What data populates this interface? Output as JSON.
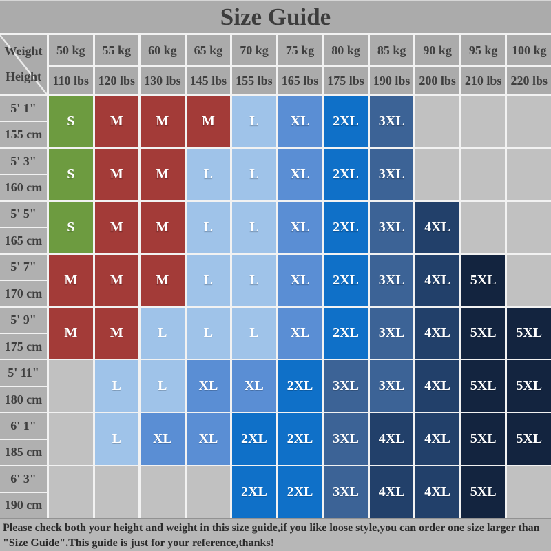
{
  "title": "Size Guide",
  "corner": {
    "weight_label": "Weight",
    "height_label": "Height"
  },
  "footer": {
    "line1": "Please check both your height and weight in this size guide,if you like loose style,you can order one size larger than",
    "line2": "\"Size Guide\".This guide is just for your reference,thanks!"
  },
  "colors": {
    "background": "#ababab",
    "grid_line": "#f2f2f2",
    "header_bg": "#ababab",
    "header_text": "#3f3f3f",
    "label_bg": "#b0b0b0",
    "empty_cell_bg": "#c1c1c1",
    "cell_text": "#ffffff",
    "footer_bg": "#b7b7b7",
    "footer_text": "#2b2b2b",
    "size_colors": {
      "S": "#6d9b40",
      "M": "#a33b38",
      "L": "#9fc3e9",
      "XL": "#5a8ed4",
      "2XL": "#0f70c8",
      "3XL": "#3c6396",
      "4XL": "#22406a",
      "5XL": "#13243f"
    }
  },
  "chart_data": {
    "type": "table",
    "title": "Size Guide",
    "weight_headers_kg": [
      "50 kg",
      "55 kg",
      "60 kg",
      "65 kg",
      "70 kg",
      "75 kg",
      "80 kg",
      "85 kg",
      "90 kg",
      "95 kg",
      "100 kg"
    ],
    "weight_headers_lbs": [
      "110 lbs",
      "120 lbs",
      "130 lbs",
      "145 lbs",
      "155 lbs",
      "165 lbs",
      "175 lbs",
      "190 lbs",
      "200 lbs",
      "210 lbs",
      "220 lbs"
    ],
    "rows": [
      {
        "height_ft": "5' 1\"",
        "height_cm": "155 cm",
        "sizes": [
          "S",
          "M",
          "M",
          "M",
          "L",
          "XL",
          "2XL",
          "3XL",
          "",
          "",
          ""
        ]
      },
      {
        "height_ft": "5' 3\"",
        "height_cm": "160 cm",
        "sizes": [
          "S",
          "M",
          "M",
          "L",
          "L",
          "XL",
          "2XL",
          "3XL",
          "",
          "",
          ""
        ]
      },
      {
        "height_ft": "5' 5\"",
        "height_cm": "165 cm",
        "sizes": [
          "S",
          "M",
          "M",
          "L",
          "L",
          "XL",
          "2XL",
          "3XL",
          "4XL",
          "",
          ""
        ]
      },
      {
        "height_ft": "5' 7\"",
        "height_cm": "170 cm",
        "sizes": [
          "M",
          "M",
          "M",
          "L",
          "L",
          "XL",
          "2XL",
          "3XL",
          "4XL",
          "5XL",
          ""
        ]
      },
      {
        "height_ft": "5' 9\"",
        "height_cm": "175 cm",
        "sizes": [
          "M",
          "M",
          "L",
          "L",
          "L",
          "XL",
          "2XL",
          "3XL",
          "4XL",
          "5XL",
          "5XL"
        ]
      },
      {
        "height_ft": "5' 11\"",
        "height_cm": "180 cm",
        "sizes": [
          "",
          "L",
          "L",
          "XL",
          "XL",
          "2XL",
          "3XL",
          "3XL",
          "4XL",
          "5XL",
          "5XL"
        ]
      },
      {
        "height_ft": "6' 1\"",
        "height_cm": "185 cm",
        "sizes": [
          "",
          "L",
          "XL",
          "XL",
          "2XL",
          "2XL",
          "3XL",
          "4XL",
          "4XL",
          "5XL",
          "5XL"
        ]
      },
      {
        "height_ft": "6' 3\"",
        "height_cm": "190 cm",
        "sizes": [
          "",
          "",
          "",
          "",
          "2XL",
          "2XL",
          "3XL",
          "4XL",
          "4XL",
          "5XL",
          ""
        ]
      }
    ]
  }
}
